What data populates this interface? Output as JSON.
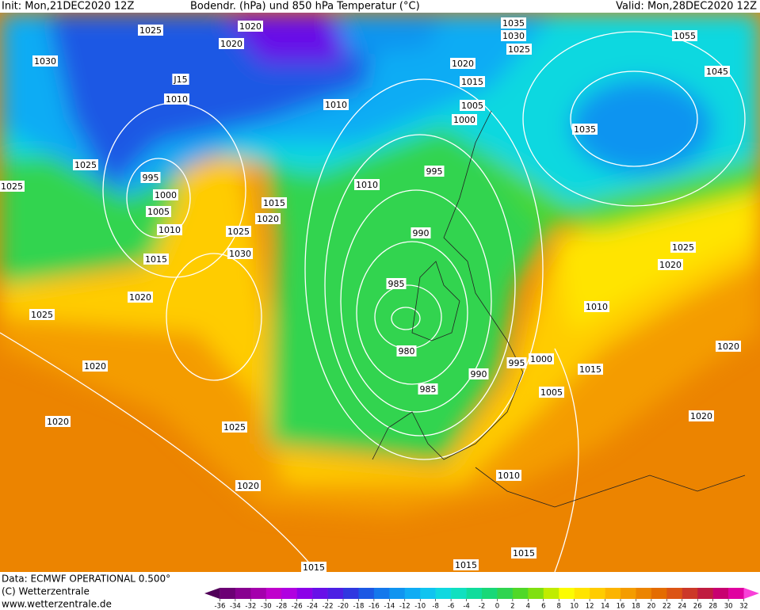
{
  "header": {
    "init": "Init: Mon,21DEC2020 12Z",
    "title": "Bodendr. (hPa) und 850 hPa Temperatur (°C)",
    "valid": "Valid: Mon,28DEC2020 12Z"
  },
  "footer": {
    "source": "Data: ECMWF OPERATIONAL 0.500°",
    "copyright": "(C) Wetterzentrale",
    "url": "www.wetterzentrale.de"
  },
  "colorbar": {
    "levels": [
      -36,
      -34,
      -32,
      -30,
      -28,
      -26,
      -24,
      -22,
      -20,
      -18,
      -16,
      -14,
      -12,
      -10,
      -8,
      -6,
      -4,
      -2,
      0,
      2,
      4,
      6,
      8,
      10,
      12,
      14,
      16,
      18,
      20,
      22,
      24,
      26,
      28,
      30,
      32
    ],
    "colors": [
      "#500058",
      "#6c0074",
      "#880090",
      "#a400ac",
      "#c000cc",
      "#b000e0",
      "#8c00e8",
      "#6810e8",
      "#4c20e4",
      "#3038e0",
      "#1c58e4",
      "#1478ec",
      "#1094f0",
      "#10acf4",
      "#10c4f0",
      "#10d8e0",
      "#10e0c0",
      "#10dc9c",
      "#18d878",
      "#30d450",
      "#50d828",
      "#80e010",
      "#c0ec00",
      "#fcfc00",
      "#ffe400",
      "#ffcc00",
      "#fcb400",
      "#f49c00",
      "#ec8400",
      "#e46c00",
      "#dc5414",
      "#cc3828",
      "#c01c40",
      "#c80070",
      "#e000a0",
      "#f840d8"
    ]
  },
  "isobar_labels": [
    "1025",
    "1020",
    "1020",
    "1030",
    "J15",
    "1010",
    "1010",
    "1020",
    "1015",
    "1005",
    "1000",
    "1035",
    "1030",
    "1025",
    "1055",
    "1045",
    "1035",
    "1025",
    "1025",
    "995",
    "1000",
    "1005",
    "1010",
    "1015",
    "1015",
    "1020",
    "1025",
    "1030",
    "1010",
    "995",
    "990",
    "985",
    "980",
    "985",
    "990",
    "995",
    "1000",
    "1015",
    "1005",
    "1010",
    "1025",
    "1020",
    "1020",
    "1025",
    "1020",
    "1020",
    "1025",
    "1020",
    "1010",
    "1015",
    "1015",
    "1020",
    "1020",
    "1015"
  ]
}
